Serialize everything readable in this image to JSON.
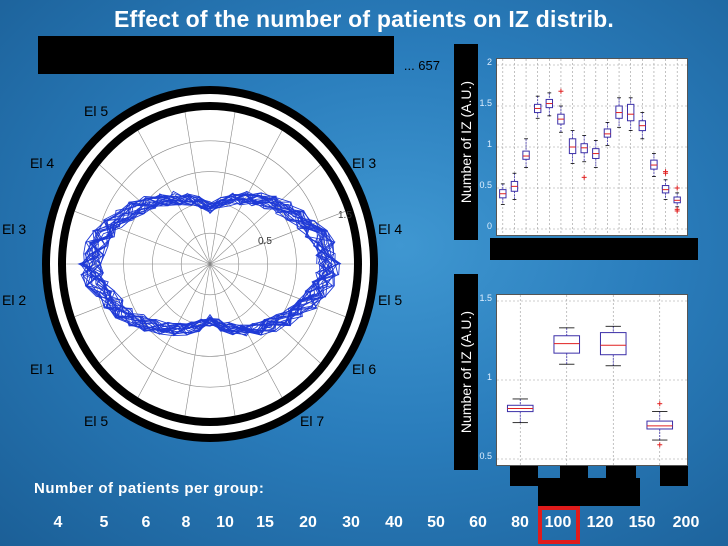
{
  "title": "Effect of the number of patients on IZ distrib.",
  "polar": {
    "caption_fragment": "... 657",
    "ring_labels": [
      "0.5",
      "1.5"
    ],
    "electrode_labels_left": [
      "El 1",
      "El 2",
      "El 3",
      "El 4",
      "El 5"
    ],
    "electrode_labels_right": [
      "El 5",
      "El 6",
      "El 7",
      "El 3",
      "El 4"
    ]
  },
  "chart_data": [
    {
      "type": "box",
      "ylabel": "Number of IZ (A.U.)",
      "ylim": [
        0,
        2
      ],
      "yticks": [
        "0",
        "0.5",
        "1",
        "1.5",
        "2"
      ],
      "boxes": [
        {
          "q1": 0.38,
          "median": 0.43,
          "q3": 0.48,
          "whisker_low": 0.3,
          "whisker_high": 0.55
        },
        {
          "q1": 0.46,
          "median": 0.52,
          "q3": 0.58,
          "whisker_low": 0.36,
          "whisker_high": 0.68
        },
        {
          "q1": 0.85,
          "median": 0.89,
          "q3": 0.95,
          "whisker_low": 0.75,
          "whisker_high": 1.1
        },
        {
          "q1": 1.42,
          "median": 1.47,
          "q3": 1.52,
          "whisker_low": 1.35,
          "whisker_high": 1.62
        },
        {
          "q1": 1.48,
          "median": 1.53,
          "q3": 1.58,
          "whisker_low": 1.38,
          "whisker_high": 1.66
        },
        {
          "q1": 1.28,
          "median": 1.34,
          "q3": 1.4,
          "whisker_low": 1.18,
          "whisker_high": 1.5,
          "outliers": [
            1.68
          ]
        },
        {
          "q1": 0.92,
          "median": 1.0,
          "q3": 1.1,
          "whisker_low": 0.8,
          "whisker_high": 1.2
        },
        {
          "q1": 0.93,
          "median": 0.99,
          "q3": 1.04,
          "whisker_low": 0.82,
          "whisker_high": 1.14,
          "outliers": [
            0.63
          ]
        },
        {
          "q1": 0.86,
          "median": 0.92,
          "q3": 0.98,
          "whisker_low": 0.75,
          "whisker_high": 1.08
        },
        {
          "q1": 1.12,
          "median": 1.16,
          "q3": 1.22,
          "whisker_low": 1.02,
          "whisker_high": 1.3
        },
        {
          "q1": 1.35,
          "median": 1.42,
          "q3": 1.5,
          "whisker_low": 1.24,
          "whisker_high": 1.6
        },
        {
          "q1": 1.32,
          "median": 1.4,
          "q3": 1.52,
          "whisker_low": 1.2,
          "whisker_high": 1.6
        },
        {
          "q1": 1.2,
          "median": 1.26,
          "q3": 1.32,
          "whisker_low": 1.1,
          "whisker_high": 1.42
        },
        {
          "q1": 0.73,
          "median": 0.78,
          "q3": 0.84,
          "whisker_low": 0.64,
          "whisker_high": 0.92
        },
        {
          "q1": 0.44,
          "median": 0.48,
          "q3": 0.53,
          "whisker_low": 0.36,
          "whisker_high": 0.6,
          "outliers": [
            0.7,
            0.68
          ]
        },
        {
          "q1": 0.32,
          "median": 0.35,
          "q3": 0.39,
          "whisker_low": 0.27,
          "whisker_high": 0.44,
          "outliers": [
            0.24,
            0.5,
            0.22
          ]
        }
      ]
    },
    {
      "type": "box",
      "ylabel": "Number of IZ (A.U.)",
      "ylim": [
        0.5,
        1.5
      ],
      "yticks": [
        "0.5",
        "1",
        "1.5"
      ],
      "boxes": [
        {
          "q1": 0.8,
          "median": 0.82,
          "q3": 0.84,
          "whisker_low": 0.73,
          "whisker_high": 0.88
        },
        {
          "q1": 1.17,
          "median": 1.23,
          "q3": 1.28,
          "whisker_low": 1.1,
          "whisker_high": 1.33
        },
        {
          "q1": 1.16,
          "median": 1.22,
          "q3": 1.3,
          "whisker_low": 1.09,
          "whisker_high": 1.34
        },
        {
          "q1": 0.69,
          "median": 0.71,
          "q3": 0.74,
          "whisker_low": 0.62,
          "whisker_high": 0.8,
          "outliers": [
            0.85,
            0.59
          ]
        }
      ]
    }
  ],
  "patients": {
    "label": "Number of patients per group:",
    "groups": [
      "4",
      "5",
      "6",
      "8",
      "10",
      "15",
      "20",
      "30",
      "40",
      "50",
      "60",
      "80",
      "100",
      "120",
      "150",
      "200"
    ],
    "highlighted": "100",
    "highlight_color": "#e01b1b"
  },
  "colors": {
    "polar_line": "#1f3ad6",
    "box_line": "#3b2fa8",
    "median": "#e02020",
    "outlier": "#e02020"
  }
}
